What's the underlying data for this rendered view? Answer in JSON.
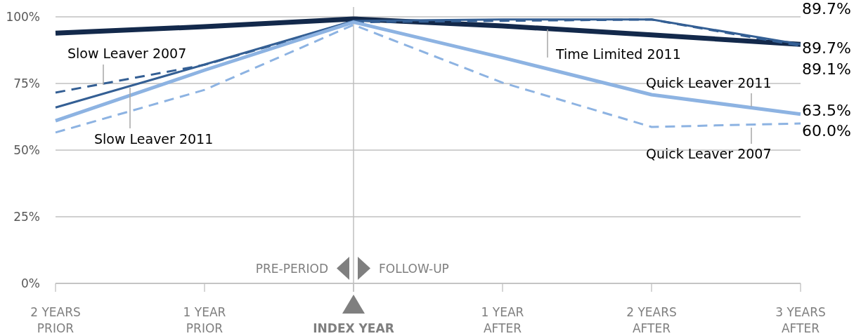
{
  "chart_data": {
    "type": "line",
    "categories": [
      "2 YEARS\nPRIOR",
      "1 YEAR\nPRIOR",
      "INDEX YEAR",
      "1 YEAR\nAFTER",
      "2 YEARS\nAFTER",
      "3 YEARS\nAFTER"
    ],
    "series": [
      {
        "name": "Time Limited 2011",
        "color": "#13294b",
        "line_style": "solid",
        "values": [
          93.9,
          96.3,
          99.2,
          96.6,
          93.2,
          89.7
        ],
        "value_labels": [
          null,
          null,
          null,
          null,
          null,
          "89.7%"
        ]
      },
      {
        "name": "Slow Leaver 2011",
        "color": "#345f94",
        "line_style": "solid",
        "values": [
          66,
          82.1,
          98.5,
          99,
          99,
          89.7
        ],
        "value_labels": [
          null,
          null,
          null,
          null,
          null,
          "89.7%"
        ]
      },
      {
        "name": "Slow Leaver 2007",
        "color": "#345f94",
        "line_style": "dashed",
        "values": [
          71.6,
          82,
          98,
          98.5,
          99,
          89.1
        ],
        "value_labels": [
          null,
          null,
          null,
          null,
          null,
          "89.1%"
        ]
      },
      {
        "name": "Quick Leaver 2011",
        "color": "#8db3e2",
        "line_style": "solid",
        "values": [
          61,
          80,
          98,
          84.7,
          70.8,
          63.5
        ],
        "value_labels": [
          null,
          null,
          null,
          null,
          null,
          "63.5%"
        ]
      },
      {
        "name": "Quick Leaver 2007",
        "color": "#8db3e2",
        "line_style": "dashed",
        "values": [
          56.6,
          72.6,
          97,
          75.3,
          58.7,
          60.0
        ],
        "value_labels": [
          null,
          null,
          null,
          null,
          null,
          "60.0%"
        ]
      }
    ],
    "ylim": [
      0,
      100
    ],
    "yticks": [
      {
        "value": 0,
        "label": "0%"
      },
      {
        "value": 25,
        "label": "25%"
      },
      {
        "value": 50,
        "label": "50%"
      },
      {
        "value": 75,
        "label": "75%"
      },
      {
        "value": 100,
        "label": "100%"
      }
    ],
    "grid": "y",
    "legend": false,
    "marker": "none",
    "ref_lines": [
      {
        "axis": "x",
        "value": "INDEX YEAR",
        "color": "#bfbfbf"
      }
    ],
    "annotations": [
      "PRE-PERIOD",
      "FOLLOW-UP"
    ]
  }
}
